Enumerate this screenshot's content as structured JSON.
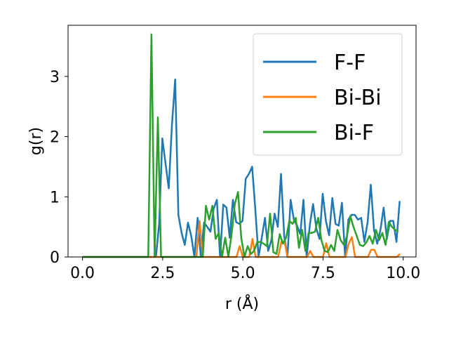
{
  "chart_data": {
    "type": "line",
    "title": "",
    "xlabel": "r (Å)",
    "ylabel": "g(r)",
    "xlim": [
      -0.45,
      10.4
    ],
    "ylim": [
      0,
      3.85
    ],
    "xticks": [
      0.0,
      2.5,
      5.0,
      7.5,
      10.0
    ],
    "xtick_labels": [
      "0.0",
      "2.5",
      "5.0",
      "7.5",
      "10.0"
    ],
    "yticks": [
      0,
      1,
      2,
      3
    ],
    "ytick_labels": [
      "0",
      "1",
      "2",
      "3"
    ],
    "grid": false,
    "legend_position": "top-right",
    "series": [
      {
        "name": "F-F",
        "color": "#1f77b4",
        "x": [
          0.0,
          2.19,
          2.29,
          2.39,
          2.49,
          2.59,
          2.69,
          2.79,
          2.89,
          2.99,
          3.09,
          3.19,
          3.29,
          3.39,
          3.49,
          3.59,
          3.69,
          3.79,
          3.89,
          3.99,
          4.09,
          4.19,
          4.29,
          4.39,
          4.49,
          4.59,
          4.69,
          4.79,
          4.89,
          4.99,
          5.09,
          5.19,
          5.29,
          5.39,
          5.49,
          5.59,
          5.69,
          5.79,
          5.89,
          5.99,
          6.09,
          6.19,
          6.29,
          6.39,
          6.49,
          6.59,
          6.69,
          6.79,
          6.89,
          6.99,
          7.09,
          7.19,
          7.29,
          7.39,
          7.49,
          7.59,
          7.69,
          7.79,
          7.89,
          7.99,
          8.09,
          8.19,
          8.29,
          8.39,
          8.49,
          8.59,
          8.69,
          8.79,
          8.89,
          8.99,
          9.09,
          9.19,
          9.29,
          9.39,
          9.49,
          9.59,
          9.69,
          9.79,
          9.89
        ],
        "values": [
          0.0,
          0.0,
          0.0,
          0.55,
          1.97,
          1.55,
          1.14,
          2.2,
          2.95,
          0.7,
          0.4,
          0.2,
          0.57,
          0.35,
          0.0,
          0.65,
          0.0,
          0.57,
          0.5,
          0.42,
          0.8,
          0.95,
          0.0,
          0.87,
          0.82,
          0.32,
          0.95,
          0.58,
          0.55,
          0.6,
          1.3,
          1.38,
          1.5,
          0.78,
          0.0,
          0.32,
          0.65,
          0.1,
          0.28,
          0.72,
          0.5,
          1.38,
          0.35,
          0.0,
          0.95,
          0.62,
          0.52,
          0.38,
          0.95,
          0.0,
          0.54,
          0.88,
          0.48,
          0.3,
          1.05,
          0.6,
          0.36,
          0.98,
          0.55,
          0.52,
          0.9,
          0.0,
          0.62,
          0.7,
          0.7,
          0.62,
          0.65,
          0.25,
          0.58,
          1.2,
          0.45,
          0.22,
          0.45,
          0.82,
          0.3,
          0.6,
          0.6,
          0.25,
          0.93
        ]
      },
      {
        "name": "Bi-Bi",
        "color": "#ff7f0e",
        "x": [
          0.0,
          3.55,
          3.65,
          3.75,
          4.8,
          4.9,
          5.0,
          5.2,
          5.3,
          5.4,
          6.1,
          6.2,
          6.3,
          6.4,
          7.0,
          7.1,
          7.2,
          7.5,
          7.6,
          7.7,
          8.2,
          8.3,
          8.4,
          8.5,
          8.9,
          9.0,
          9.1,
          9.2,
          9.8,
          9.9
        ],
        "values": [
          0.0,
          0.0,
          0.6,
          0.0,
          0.0,
          0.18,
          0.0,
          0.0,
          0.3,
          0.0,
          0.0,
          0.25,
          0.25,
          0.0,
          0.0,
          0.1,
          0.0,
          0.0,
          0.23,
          0.0,
          0.0,
          0.22,
          0.33,
          0.0,
          0.0,
          0.12,
          0.12,
          0.0,
          0.0,
          0.05
        ]
      },
      {
        "name": "Bi-F",
        "color": "#2ca02c",
        "x": [
          0.0,
          2.05,
          2.15,
          2.25,
          2.35,
          2.45,
          2.55,
          3.45,
          3.55,
          3.65,
          3.75,
          3.85,
          3.95,
          4.05,
          4.15,
          4.25,
          4.35,
          4.45,
          4.55,
          4.65,
          4.75,
          4.85,
          4.95,
          5.05,
          5.15,
          5.25,
          5.35,
          5.45,
          5.55,
          5.65,
          5.75,
          5.85,
          5.95,
          6.05,
          6.15,
          6.25,
          6.35,
          6.45,
          6.55,
          6.65,
          6.75,
          6.85,
          6.95,
          7.05,
          7.15,
          7.25,
          7.35,
          7.45,
          7.55,
          7.65,
          7.75,
          7.85,
          7.95,
          8.05,
          8.15,
          8.25,
          8.35,
          8.45,
          8.55,
          8.65,
          8.75,
          8.85,
          8.95,
          9.05,
          9.15,
          9.25,
          9.35,
          9.45,
          9.55,
          9.65,
          9.75,
          9.85
        ],
        "values": [
          0.0,
          0.0,
          3.7,
          0.0,
          2.32,
          0.0,
          0.0,
          0.0,
          0.0,
          0.0,
          0.0,
          0.85,
          0.62,
          0.85,
          0.3,
          0.4,
          0.0,
          0.32,
          0.0,
          0.38,
          0.88,
          1.08,
          0.32,
          0.0,
          0.18,
          0.05,
          0.1,
          0.25,
          0.25,
          0.22,
          0.18,
          0.72,
          0.08,
          0.05,
          0.38,
          0.22,
          0.32,
          0.6,
          0.55,
          0.65,
          0.15,
          0.45,
          0.1,
          0.4,
          0.4,
          0.42,
          0.65,
          0.28,
          0.1,
          0.08,
          0.2,
          0.1,
          0.45,
          0.28,
          0.2,
          0.35,
          0.68,
          0.5,
          0.35,
          0.2,
          0.18,
          0.24,
          0.35,
          0.22,
          0.45,
          0.28,
          0.4,
          0.2,
          0.58,
          0.5,
          0.45,
          0.42
        ]
      }
    ]
  }
}
